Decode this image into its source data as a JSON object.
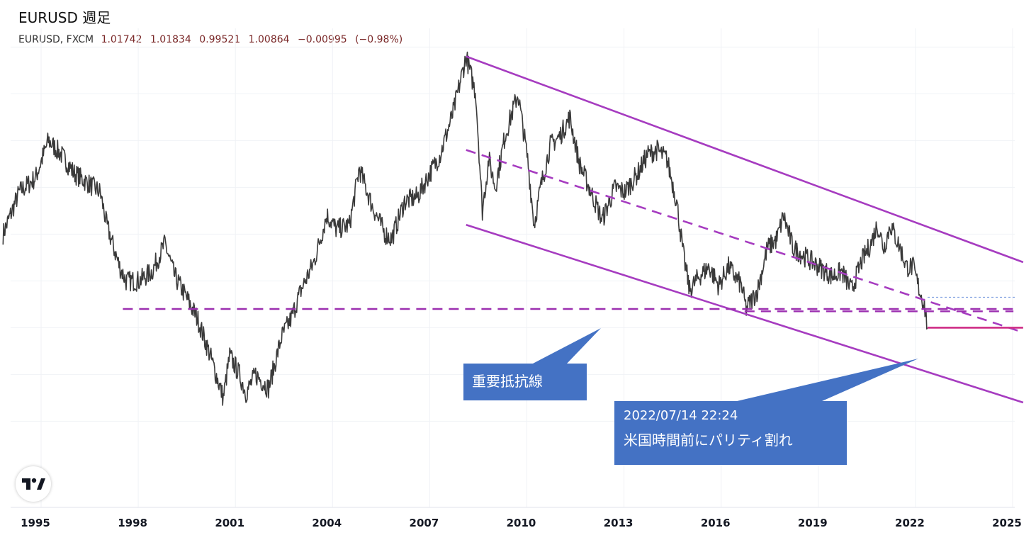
{
  "header": {
    "title": "EURUSD 週足",
    "symbol": "EURUSD, FXCM",
    "open": "1.01742",
    "high": "1.01834",
    "low": "0.99521",
    "close": "1.00864",
    "change": "−0.00995",
    "change_pct": "(−0.98%)"
  },
  "annotations": {
    "resistance_label": "重要抵抗線",
    "event_time": "2022/07/14 22:24",
    "event_text": "米国時間前にパリティ割れ"
  },
  "colors": {
    "channel": "#a63cc0",
    "support_dash": "#9c2fb0",
    "parity_line": "#d0338a",
    "callout": "#4472c4",
    "candle": "#3a3a3a"
  },
  "logo_icon": "tradingview-logo-icon",
  "chart_data": {
    "type": "line",
    "title": "EURUSD 週足",
    "x_ticks": [
      "1995",
      "1998",
      "2001",
      "2004",
      "2007",
      "2010",
      "2013",
      "2016",
      "2019",
      "2022",
      "2025"
    ],
    "xlim": [
      1994,
      2025.5
    ],
    "ylim": [
      0.78,
      1.64
    ],
    "grid": true,
    "series": [
      {
        "values": [
          [
            1994.0,
            1.2
          ],
          [
            1994.5,
            1.29
          ],
          [
            1995.0,
            1.32
          ],
          [
            1995.4,
            1.4
          ],
          [
            1995.8,
            1.37
          ],
          [
            1996.2,
            1.33
          ],
          [
            1996.6,
            1.31
          ],
          [
            1997.0,
            1.29
          ],
          [
            1997.2,
            1.22
          ],
          [
            1997.6,
            1.13
          ],
          [
            1997.8,
            1.1
          ],
          [
            1998.2,
            1.1
          ],
          [
            1998.6,
            1.12
          ],
          [
            1999.0,
            1.18
          ],
          [
            1999.3,
            1.11
          ],
          [
            1999.7,
            1.06
          ],
          [
            2000.0,
            1.02
          ],
          [
            2000.4,
            0.94
          ],
          [
            2000.8,
            0.85
          ],
          [
            2001.0,
            0.94
          ],
          [
            2001.3,
            0.9
          ],
          [
            2001.5,
            0.86
          ],
          [
            2001.8,
            0.9
          ],
          [
            2002.2,
            0.87
          ],
          [
            2002.6,
            0.98
          ],
          [
            2002.9,
            1.02
          ],
          [
            2003.2,
            1.08
          ],
          [
            2003.6,
            1.14
          ],
          [
            2004.0,
            1.24
          ],
          [
            2004.3,
            1.21
          ],
          [
            2004.7,
            1.22
          ],
          [
            2005.0,
            1.34
          ],
          [
            2005.4,
            1.26
          ],
          [
            2005.8,
            1.2
          ],
          [
            2006.0,
            1.19
          ],
          [
            2006.4,
            1.27
          ],
          [
            2006.8,
            1.28
          ],
          [
            2007.1,
            1.32
          ],
          [
            2007.5,
            1.37
          ],
          [
            2007.9,
            1.46
          ],
          [
            2008.3,
            1.58
          ],
          [
            2008.6,
            1.5
          ],
          [
            2008.8,
            1.25
          ],
          [
            2009.0,
            1.36
          ],
          [
            2009.2,
            1.3
          ],
          [
            2009.5,
            1.41
          ],
          [
            2009.9,
            1.5
          ],
          [
            2010.2,
            1.36
          ],
          [
            2010.4,
            1.22
          ],
          [
            2010.6,
            1.3
          ],
          [
            2010.9,
            1.39
          ],
          [
            2011.2,
            1.41
          ],
          [
            2011.5,
            1.45
          ],
          [
            2011.8,
            1.35
          ],
          [
            2012.1,
            1.3
          ],
          [
            2012.5,
            1.23
          ],
          [
            2012.9,
            1.3
          ],
          [
            2013.2,
            1.29
          ],
          [
            2013.6,
            1.33
          ],
          [
            2013.9,
            1.37
          ],
          [
            2014.2,
            1.38
          ],
          [
            2014.5,
            1.36
          ],
          [
            2014.8,
            1.27
          ],
          [
            2015.0,
            1.16
          ],
          [
            2015.2,
            1.08
          ],
          [
            2015.5,
            1.11
          ],
          [
            2015.8,
            1.13
          ],
          [
            2016.1,
            1.09
          ],
          [
            2016.4,
            1.13
          ],
          [
            2016.8,
            1.09
          ],
          [
            2016.95,
            1.04
          ],
          [
            2017.3,
            1.08
          ],
          [
            2017.6,
            1.17
          ],
          [
            2017.9,
            1.19
          ],
          [
            2018.1,
            1.24
          ],
          [
            2018.4,
            1.17
          ],
          [
            2018.8,
            1.15
          ],
          [
            2019.2,
            1.13
          ],
          [
            2019.6,
            1.11
          ],
          [
            2019.9,
            1.12
          ],
          [
            2020.2,
            1.08
          ],
          [
            2020.5,
            1.14
          ],
          [
            2020.8,
            1.18
          ],
          [
            2021.0,
            1.22
          ],
          [
            2021.2,
            1.17
          ],
          [
            2021.4,
            1.22
          ],
          [
            2021.7,
            1.17
          ],
          [
            2021.9,
            1.13
          ],
          [
            2022.1,
            1.13
          ],
          [
            2022.3,
            1.08
          ],
          [
            2022.45,
            1.05
          ],
          [
            2022.54,
            1.0
          ]
        ]
      }
    ],
    "trendlines": [
      {
        "kind": "channel-upper",
        "style": "solid",
        "from": [
          2008.3,
          1.58
        ],
        "to": [
          2025.5,
          1.14
        ]
      },
      {
        "kind": "channel-middle",
        "style": "dashed",
        "from": [
          2008.3,
          1.38
        ],
        "to": [
          2025.5,
          0.99
        ]
      },
      {
        "kind": "channel-lower",
        "style": "solid",
        "from": [
          2008.3,
          1.22
        ],
        "to": [
          2025.5,
          0.84
        ]
      },
      {
        "kind": "resistance",
        "style": "dashed",
        "from": [
          1997.7,
          1.04
        ],
        "to": [
          2025.2,
          1.04
        ]
      },
      {
        "kind": "support",
        "style": "dashed",
        "from": [
          2016.9,
          1.035
        ],
        "to": [
          2025.2,
          1.035
        ]
      },
      {
        "kind": "parity",
        "style": "solid",
        "from": [
          2022.55,
          1.0
        ],
        "to": [
          2025.5,
          1.0
        ]
      }
    ]
  }
}
